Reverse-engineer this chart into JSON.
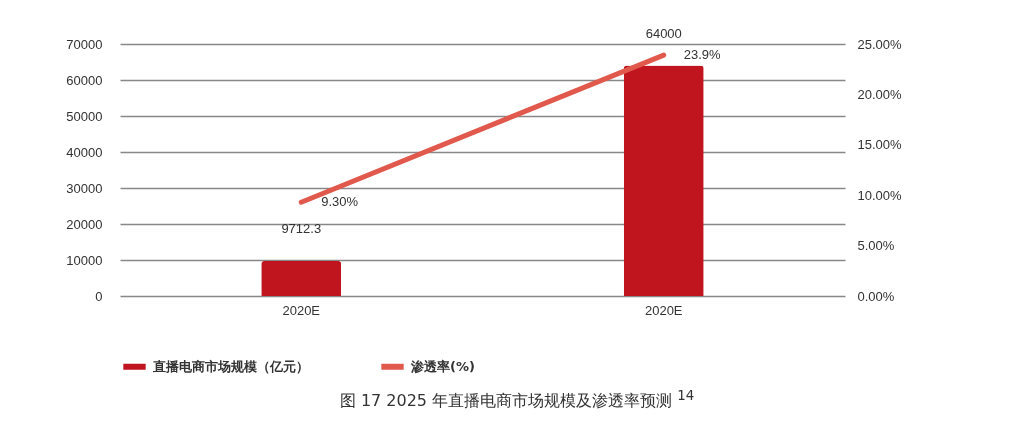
{
  "chart_data": {
    "type": "bar",
    "categories": [
      "2020E",
      "2020E"
    ],
    "series": [
      {
        "name": "直播电商市场规模（亿元）",
        "color": "#c0141e",
        "values": [
          9712.3,
          64000
        ],
        "value_labels": [
          "9712.3",
          "64000"
        ]
      },
      {
        "name": "渗透率(%)",
        "type": "line",
        "axis": "y2",
        "color": "#e0594c",
        "values": [
          9.3,
          23.9
        ],
        "value_labels": [
          "9.30%",
          "23.9%"
        ]
      }
    ],
    "ylim": [
      0,
      70000
    ],
    "yticks": [
      0,
      10000,
      20000,
      30000,
      40000,
      50000,
      60000,
      70000
    ],
    "y2lim": [
      0,
      25
    ],
    "y2ticks": [
      {
        "value": 0,
        "label": "0.00%"
      },
      {
        "value": 5,
        "label": "5.00%"
      },
      {
        "value": 10,
        "label": "10.00%"
      },
      {
        "value": 15,
        "label": "15.00%"
      },
      {
        "value": 20,
        "label": "20.00%"
      },
      {
        "value": 25,
        "label": "25.00%"
      }
    ],
    "grid": "y",
    "legend": "bottom",
    "annotations": [
      "图 17  2025 年直播电商市场规模及渗透率预测 $^{14}$"
    ]
  }
}
